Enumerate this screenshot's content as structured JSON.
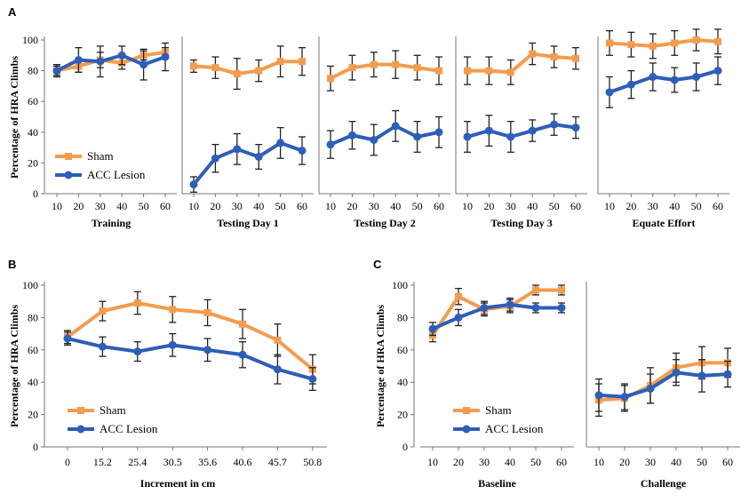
{
  "colors": {
    "sham": "#F39C4F",
    "lesion": "#2E5EB8",
    "axis": "#777777",
    "error": "#222222"
  },
  "chart_data": [
    {
      "panel": "A",
      "type": "line",
      "ylabel": "Percentage of HRA Climbs",
      "ylim": [
        0,
        100
      ],
      "yticks": [
        0,
        20,
        40,
        60,
        80,
        100
      ],
      "categories": [
        "10",
        "20",
        "30",
        "40",
        "50",
        "60"
      ],
      "legend": [
        "Sham",
        "ACC Lesion"
      ],
      "legend_position": "bottom-left",
      "segments": [
        {
          "xlabel": "Training",
          "series": [
            {
              "name": "Sham",
              "values": [
                80,
                83,
                87,
                85,
                90,
                92
              ],
              "errors": [
                3,
                4,
                5,
                4,
                3,
                3
              ]
            },
            {
              "name": "ACC Lesion",
              "values": [
                80,
                87,
                86,
                90,
                84,
                89
              ],
              "errors": [
                4,
                8,
                10,
                6,
                10,
                9
              ]
            }
          ]
        },
        {
          "xlabel": "Testing Day 1",
          "series": [
            {
              "name": "Sham",
              "values": [
                83,
                82,
                78,
                80,
                86,
                86
              ],
              "errors": [
                4,
                7,
                10,
                7,
                10,
                9
              ]
            },
            {
              "name": "ACC Lesion",
              "values": [
                6,
                23,
                29,
                24,
                33,
                28
              ],
              "errors": [
                5,
                9,
                10,
                8,
                10,
                9
              ]
            }
          ]
        },
        {
          "xlabel": "Testing Day 2",
          "series": [
            {
              "name": "Sham",
              "values": [
                75,
                82,
                84,
                84,
                82,
                80
              ],
              "errors": [
                8,
                8,
                8,
                9,
                8,
                9
              ]
            },
            {
              "name": "ACC Lesion",
              "values": [
                32,
                38,
                35,
                44,
                37,
                40
              ],
              "errors": [
                9,
                9,
                10,
                10,
                10,
                10
              ]
            }
          ]
        },
        {
          "xlabel": "Testing Day 3",
          "series": [
            {
              "name": "Sham",
              "values": [
                80,
                80,
                79,
                91,
                89,
                88
              ],
              "errors": [
                9,
                9,
                8,
                7,
                7,
                7
              ]
            },
            {
              "name": "ACC Lesion",
              "values": [
                37,
                41,
                37,
                41,
                45,
                43
              ],
              "errors": [
                10,
                10,
                10,
                7,
                7,
                7
              ]
            }
          ]
        },
        {
          "xlabel": "Equate Effort",
          "series": [
            {
              "name": "Sham",
              "values": [
                98,
                97,
                96,
                98,
                100,
                99
              ],
              "errors": [
                8,
                8,
                8,
                8,
                7,
                8
              ]
            },
            {
              "name": "ACC Lesion",
              "values": [
                66,
                71,
                76,
                74,
                76,
                80
              ],
              "errors": [
                10,
                9,
                9,
                8,
                9,
                9
              ]
            }
          ]
        }
      ]
    },
    {
      "panel": "B",
      "type": "line",
      "xlabel": "Increment in cm",
      "ylabel": "Percentage of HRA Climbs",
      "ylim": [
        0,
        100
      ],
      "yticks": [
        0,
        20,
        40,
        60,
        80,
        100
      ],
      "categories": [
        "0",
        "15.2",
        "25.4",
        "30.5",
        "35.6",
        "40.6",
        "45.7",
        "50.8"
      ],
      "legend": [
        "Sham",
        "ACC Lesion"
      ],
      "legend_position": "bottom-left",
      "series": [
        {
          "name": "Sham",
          "values": [
            68,
            84,
            89,
            85,
            83,
            76,
            66,
            48
          ],
          "errors": [
            4,
            6,
            7,
            8,
            8,
            9,
            10,
            9
          ]
        },
        {
          "name": "ACC Lesion",
          "values": [
            67,
            62,
            59,
            63,
            60,
            57,
            48,
            42
          ],
          "errors": [
            4,
            6,
            6,
            7,
            7,
            8,
            9,
            7
          ]
        }
      ]
    },
    {
      "panel": "C",
      "type": "line",
      "ylabel": "Percentage of HRA Climbs",
      "ylim": [
        0,
        100
      ],
      "yticks": [
        0,
        20,
        40,
        60,
        80,
        100
      ],
      "categories": [
        "10",
        "20",
        "30",
        "40",
        "50",
        "60"
      ],
      "legend": [
        "Sham",
        "ACC Lesion"
      ],
      "legend_position": "bottom-left",
      "segments": [
        {
          "xlabel": "Baseline",
          "series": [
            {
              "name": "Sham",
              "values": [
                69,
                93,
                85,
                87,
                97,
                97
              ],
              "errors": [
                4,
                5,
                4,
                4,
                3,
                3
              ]
            },
            {
              "name": "ACC Lesion",
              "values": [
                73,
                80,
                86,
                88,
                86,
                86
              ],
              "errors": [
                4,
                5,
                4,
                4,
                3,
                3
              ]
            }
          ]
        },
        {
          "xlabel": "Challenge",
          "series": [
            {
              "name": "Sham",
              "values": [
                29,
                30,
                38,
                49,
                52,
                52
              ],
              "errors": [
                10,
                8,
                11,
                9,
                10,
                9
              ]
            },
            {
              "name": "ACC Lesion",
              "values": [
                32,
                31,
                36,
                46,
                44,
                45
              ],
              "errors": [
                10,
                8,
                9,
                8,
                10,
                8
              ]
            }
          ]
        }
      ]
    }
  ]
}
